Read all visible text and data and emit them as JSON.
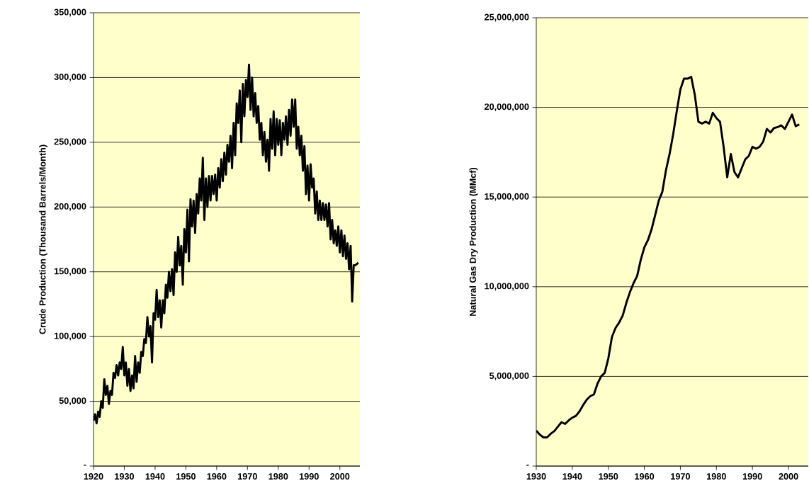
{
  "chart_data": [
    {
      "type": "line",
      "ylabel": "Crude Production (Thousand Barrels/Month)",
      "x": [
        1920,
        1920.5,
        1921,
        1921.5,
        1922,
        1922.5,
        1923,
        1923.5,
        1924,
        1924.5,
        1925,
        1925.5,
        1926,
        1926.5,
        1927,
        1927.5,
        1928,
        1928.5,
        1929,
        1929.5,
        1930,
        1930.5,
        1931,
        1931.5,
        1932,
        1932.5,
        1933,
        1933.5,
        1934,
        1934.5,
        1935,
        1935.5,
        1936,
        1936.5,
        1937,
        1937.5,
        1938,
        1938.5,
        1939,
        1939.5,
        1940,
        1940.5,
        1941,
        1941.5,
        1942,
        1942.5,
        1943,
        1943.5,
        1944,
        1944.5,
        1945,
        1945.5,
        1946,
        1946.5,
        1947,
        1947.5,
        1948,
        1948.5,
        1949,
        1949.5,
        1950,
        1950.5,
        1951,
        1951.5,
        1952,
        1952.5,
        1953,
        1953.5,
        1954,
        1954.5,
        1955,
        1955.5,
        1956,
        1956.5,
        1957,
        1957.5,
        1958,
        1958.5,
        1959,
        1959.5,
        1960,
        1960.5,
        1961,
        1961.5,
        1962,
        1962.5,
        1963,
        1963.5,
        1964,
        1964.5,
        1965,
        1965.5,
        1966,
        1966.5,
        1967,
        1967.5,
        1968,
        1968.5,
        1969,
        1969.5,
        1970,
        1970.5,
        1971,
        1971.5,
        1972,
        1972.5,
        1973,
        1973.5,
        1974,
        1974.5,
        1975,
        1975.5,
        1976,
        1976.5,
        1977,
        1977.5,
        1978,
        1978.5,
        1979,
        1979.5,
        1980,
        1980.5,
        1981,
        1981.5,
        1982,
        1982.5,
        1983,
        1983.5,
        1984,
        1984.5,
        1985,
        1985.5,
        1986,
        1986.5,
        1987,
        1987.5,
        1988,
        1988.5,
        1989,
        1989.5,
        1990,
        1990.5,
        1991,
        1991.5,
        1992,
        1992.5,
        1993,
        1993.5,
        1994,
        1994.5,
        1995,
        1995.5,
        1996,
        1996.5,
        1997,
        1997.5,
        1998,
        1998.5,
        1999,
        1999.5,
        2000,
        2000.5,
        2001,
        2001.5,
        2002,
        2002.5,
        2003,
        2003.5,
        2004,
        2004.5,
        2005,
        2006
      ],
      "series": [
        {
          "color": "#000000",
          "values": [
            35000,
            40000,
            33000,
            42000,
            38000,
            50000,
            45000,
            67000,
            55000,
            62000,
            48000,
            58000,
            55000,
            72000,
            68000,
            78000,
            70000,
            80000,
            75000,
            92000,
            70000,
            80000,
            62000,
            75000,
            58000,
            70000,
            60000,
            85000,
            65000,
            80000,
            72000,
            88000,
            85000,
            98000,
            95000,
            115000,
            100000,
            108000,
            80000,
            118000,
            113000,
            136000,
            115000,
            128000,
            107000,
            128000,
            118000,
            140000,
            130000,
            150000,
            135000,
            152000,
            132000,
            165000,
            150000,
            177000,
            155000,
            170000,
            140000,
            183000,
            165000,
            198000,
            158000,
            206000,
            185000,
            205000,
            180000,
            210000,
            195000,
            222000,
            205000,
            238000,
            190000,
            222000,
            200000,
            224000,
            205000,
            224000,
            210000,
            225000,
            205000,
            230000,
            215000,
            237000,
            220000,
            242000,
            225000,
            248000,
            235000,
            255000,
            230000,
            265000,
            240000,
            280000,
            265000,
            290000,
            250000,
            295000,
            270000,
            298000,
            285000,
            310000,
            275000,
            300000,
            270000,
            288000,
            265000,
            278000,
            252000,
            265000,
            240000,
            258000,
            235000,
            252000,
            228000,
            268000,
            245000,
            274000,
            240000,
            268000,
            248000,
            267000,
            240000,
            265000,
            252000,
            270000,
            248000,
            275000,
            255000,
            283000,
            262000,
            283000,
            245000,
            262000,
            240000,
            255000,
            228000,
            247000,
            210000,
            232000,
            205000,
            233000,
            215000,
            222000,
            195000,
            212000,
            190000,
            205000,
            190000,
            203000,
            190000,
            202000,
            185000,
            203000,
            175000,
            190000,
            172000,
            182000,
            170000,
            185000,
            165000,
            182000,
            162000,
            178000,
            160000,
            172000,
            152000,
            170000,
            127000,
            155000,
            155000,
            157000
          ]
        }
      ],
      "xlim": [
        1920,
        2006.5
      ],
      "ylim": [
        0,
        350000
      ],
      "xticks": [
        1920,
        1930,
        1940,
        1950,
        1960,
        1970,
        1980,
        1990,
        2000
      ],
      "yticks": [
        {
          "value": 0,
          "label": "-"
        },
        {
          "value": 50000,
          "label": "50,000"
        },
        {
          "value": 100000,
          "label": "100,000"
        },
        {
          "value": 150000,
          "label": "150,000"
        },
        {
          "value": 200000,
          "label": "200,000"
        },
        {
          "value": 250000,
          "label": "250,000"
        },
        {
          "value": 300000,
          "label": "300,000"
        },
        {
          "value": 350000,
          "label": "350,000"
        }
      ],
      "grid": "y"
    },
    {
      "type": "line",
      "ylabel": "Natural Gas Dry Production (MMcf)",
      "x": [
        1930,
        1931,
        1932,
        1933,
        1934,
        1935,
        1936,
        1937,
        1938,
        1939,
        1940,
        1941,
        1942,
        1943,
        1944,
        1945,
        1946,
        1947,
        1948,
        1949,
        1950,
        1951,
        1952,
        1953,
        1954,
        1955,
        1956,
        1957,
        1958,
        1959,
        1960,
        1961,
        1962,
        1963,
        1964,
        1965,
        1966,
        1967,
        1968,
        1969,
        1970,
        1971,
        1972,
        1973,
        1974,
        1975,
        1976,
        1977,
        1978,
        1979,
        1980,
        1981,
        1982,
        1983,
        1984,
        1985,
        1986,
        1987,
        1988,
        1989,
        1990,
        1991,
        1992,
        1993,
        1994,
        1995,
        1996,
        1997,
        1998,
        1999,
        2000,
        2001,
        2002,
        2003
      ],
      "series": [
        {
          "color": "#000000",
          "values": [
            1980000,
            1750000,
            1600000,
            1600000,
            1800000,
            1950000,
            2200000,
            2450000,
            2350000,
            2550000,
            2700000,
            2800000,
            3050000,
            3400000,
            3700000,
            3900000,
            4000000,
            4600000,
            5000000,
            5200000,
            6000000,
            7200000,
            7700000,
            8000000,
            8400000,
            9100000,
            9700000,
            10200000,
            10600000,
            11500000,
            12200000,
            12600000,
            13200000,
            14000000,
            14800000,
            15300000,
            16500000,
            17400000,
            18500000,
            19800000,
            21000000,
            21600000,
            21600000,
            21700000,
            20700000,
            19200000,
            19100000,
            19200000,
            19100000,
            19700000,
            19400000,
            19200000,
            17800000,
            16100000,
            17400000,
            16400000,
            16100000,
            16600000,
            17100000,
            17300000,
            17800000,
            17700000,
            17800000,
            18100000,
            18800000,
            18600000,
            18850000,
            18900000,
            19000000,
            18800000,
            19200000,
            19600000,
            18950000,
            19050000
          ]
        }
      ],
      "xlim": [
        1930,
        2005.5
      ],
      "ylim": [
        0,
        25000000
      ],
      "xticks": [
        1930,
        1940,
        1950,
        1960,
        1970,
        1980,
        1990,
        2000
      ],
      "yticks": [
        {
          "value": 0,
          "label": "-"
        },
        {
          "value": 5000000,
          "label": "5,000,000"
        },
        {
          "value": 10000000,
          "label": "10,000,000"
        },
        {
          "value": 15000000,
          "label": "15,000,000"
        },
        {
          "value": 20000000,
          "label": "20,000,000"
        },
        {
          "value": 25000000,
          "label": "25,000,000"
        }
      ],
      "grid": "y"
    }
  ]
}
